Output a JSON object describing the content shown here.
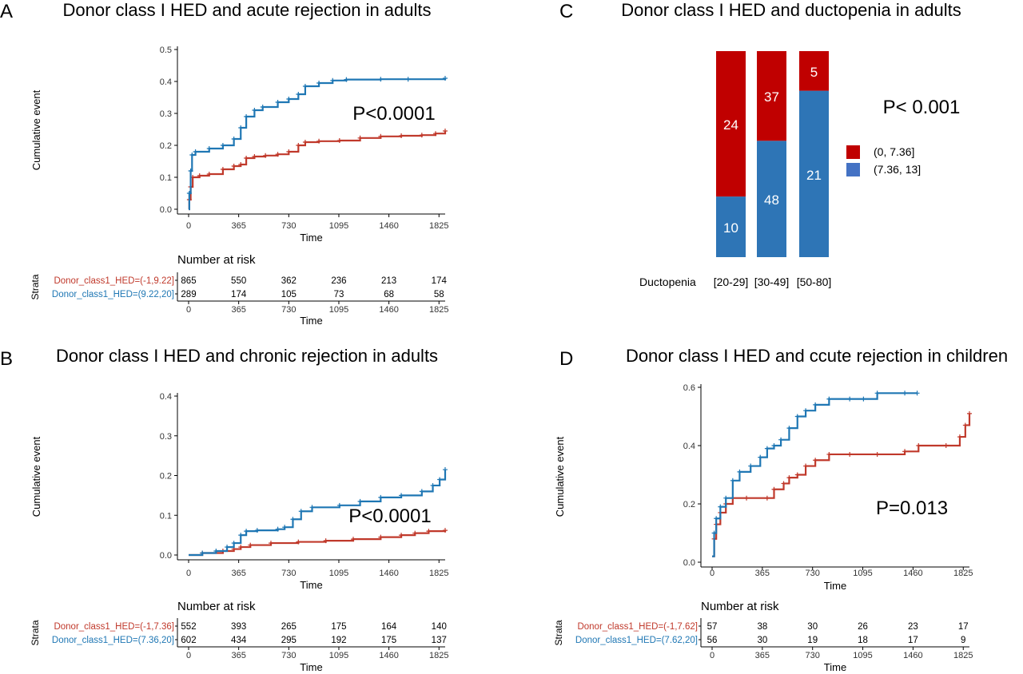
{
  "colors": {
    "red": "#c0392b",
    "blue": "#1f77b4",
    "bar_red": "#c00000",
    "bar_blue": "#2e75b6",
    "legend_blue": "#4472c4"
  },
  "chart_data": [
    {
      "id": "A",
      "type": "line",
      "panel_letter": "A",
      "title": "Donor class I HED and acute rejection in adults",
      "xlabel": "Time",
      "ylabel": "Cumulative event",
      "xlim": [
        0,
        1870
      ],
      "ylim": [
        0,
        0.5
      ],
      "xticks": [
        "0",
        "365",
        "730",
        "1095",
        "1460",
        "1825"
      ],
      "yticks": [
        "0.0",
        "0.1",
        "0.2",
        "0.3",
        "0.4",
        "0.5"
      ],
      "annotation": "P<0.0001",
      "series": [
        {
          "name": "Donor_class1_HED=(-1,9.22]",
          "color": "red",
          "points": [
            [
              0,
              0
            ],
            [
              5,
              0.03
            ],
            [
              15,
              0.07
            ],
            [
              30,
              0.1
            ],
            [
              80,
              0.105
            ],
            [
              150,
              0.11
            ],
            [
              250,
              0.125
            ],
            [
              330,
              0.135
            ],
            [
              380,
              0.14
            ],
            [
              420,
              0.16
            ],
            [
              480,
              0.165
            ],
            [
              560,
              0.168
            ],
            [
              650,
              0.172
            ],
            [
              730,
              0.18
            ],
            [
              800,
              0.2
            ],
            [
              850,
              0.21
            ],
            [
              950,
              0.213
            ],
            [
              1100,
              0.215
            ],
            [
              1250,
              0.223
            ],
            [
              1400,
              0.228
            ],
            [
              1550,
              0.23
            ],
            [
              1700,
              0.232
            ],
            [
              1800,
              0.237
            ],
            [
              1870,
              0.245
            ]
          ]
        },
        {
          "name": "Donor_class1_HED=(9.22,20]",
          "color": "blue",
          "points": [
            [
              0,
              0
            ],
            [
              5,
              0.05
            ],
            [
              15,
              0.12
            ],
            [
              25,
              0.17
            ],
            [
              50,
              0.18
            ],
            [
              150,
              0.19
            ],
            [
              250,
              0.2
            ],
            [
              330,
              0.22
            ],
            [
              380,
              0.255
            ],
            [
              420,
              0.29
            ],
            [
              480,
              0.31
            ],
            [
              540,
              0.32
            ],
            [
              650,
              0.335
            ],
            [
              730,
              0.345
            ],
            [
              800,
              0.36
            ],
            [
              850,
              0.385
            ],
            [
              950,
              0.395
            ],
            [
              1050,
              0.403
            ],
            [
              1150,
              0.406
            ],
            [
              1400,
              0.407
            ],
            [
              1600,
              0.407
            ],
            [
              1870,
              0.41
            ]
          ]
        }
      ],
      "risk_table": {
        "heading": "Number at risk",
        "strata_label": "Strata",
        "xlabel": "Time",
        "rows": [
          {
            "label": "Donor_class1_HED=(-1,9.22]",
            "color": "red",
            "values": [
              "865",
              "550",
              "362",
              "236",
              "213",
              "174"
            ]
          },
          {
            "label": "Donor_class1_HED=(9.22,20]",
            "color": "blue",
            "values": [
              "289",
              "174",
              "105",
              "73",
              "68",
              "58"
            ]
          }
        ]
      }
    },
    {
      "id": "B",
      "type": "line",
      "panel_letter": "B",
      "title": "Donor class I HED and chronic rejection in adults",
      "xlabel": "Time",
      "ylabel": "Cumulative event",
      "xlim": [
        0,
        1870
      ],
      "ylim": [
        0,
        0.4
      ],
      "xticks": [
        "0",
        "365",
        "730",
        "1095",
        "1460",
        "1825"
      ],
      "yticks": [
        "0.0",
        "0.1",
        "0.2",
        "0.3",
        "0.4"
      ],
      "annotation": "P<0.0001",
      "series": [
        {
          "name": "Donor_class1_HED=(-1,7.36]",
          "color": "red",
          "points": [
            [
              0,
              0
            ],
            [
              100,
              0.005
            ],
            [
              250,
              0.01
            ],
            [
              330,
              0.015
            ],
            [
              380,
              0.02
            ],
            [
              450,
              0.025
            ],
            [
              600,
              0.03
            ],
            [
              800,
              0.033
            ],
            [
              1000,
              0.036
            ],
            [
              1200,
              0.04
            ],
            [
              1400,
              0.045
            ],
            [
              1550,
              0.05
            ],
            [
              1650,
              0.055
            ],
            [
              1750,
              0.06
            ],
            [
              1870,
              0.062
            ]
          ]
        },
        {
          "name": "Donor_class1_HED=(7.36,20]",
          "color": "blue",
          "points": [
            [
              0,
              0
            ],
            [
              100,
              0.005
            ],
            [
              200,
              0.01
            ],
            [
              280,
              0.02
            ],
            [
              330,
              0.03
            ],
            [
              380,
              0.05
            ],
            [
              420,
              0.06
            ],
            [
              500,
              0.062
            ],
            [
              650,
              0.065
            ],
            [
              700,
              0.07
            ],
            [
              760,
              0.09
            ],
            [
              820,
              0.11
            ],
            [
              900,
              0.12
            ],
            [
              1100,
              0.125
            ],
            [
              1250,
              0.135
            ],
            [
              1400,
              0.145
            ],
            [
              1550,
              0.15
            ],
            [
              1700,
              0.16
            ],
            [
              1780,
              0.175
            ],
            [
              1830,
              0.19
            ],
            [
              1870,
              0.215
            ]
          ]
        }
      ],
      "risk_table": {
        "heading": "Number at risk",
        "strata_label": "Strata",
        "xlabel": "Time",
        "rows": [
          {
            "label": "Donor_class1_HED=(-1,7.36]",
            "color": "red",
            "values": [
              "552",
              "393",
              "265",
              "175",
              "164",
              "140"
            ]
          },
          {
            "label": "Donor_class1_HED=(7.36,20]",
            "color": "blue",
            "values": [
              "602",
              "434",
              "295",
              "192",
              "175",
              "137"
            ]
          }
        ]
      }
    },
    {
      "id": "C",
      "type": "bar",
      "stacked": true,
      "panel_letter": "C",
      "title": "Donor class I HED and ductopenia in adults",
      "xlabel": "Ductopenia",
      "categories": [
        "[20-29]",
        "[30-49]",
        "[50-80]"
      ],
      "annotation": "P< 0.001",
      "series": [
        {
          "name": "(7.36, 13]",
          "color": "bar_blue",
          "values": [
            10,
            48,
            21
          ]
        },
        {
          "name": "(0, 7.36]",
          "color": "bar_red",
          "values": [
            24,
            37,
            5
          ]
        }
      ],
      "legend_placement": "right"
    },
    {
      "id": "D",
      "type": "line",
      "panel_letter": "D",
      "title": "Donor class I HED and ccute rejection in children",
      "xlabel": "Time",
      "ylabel": "Cumulative event",
      "xlim": [
        0,
        1870
      ],
      "ylim": [
        0,
        0.6
      ],
      "xticks": [
        "0",
        "365",
        "730",
        "1095",
        "1460",
        "1825"
      ],
      "yticks": [
        "0.0",
        "0.2",
        "0.4",
        "0.6"
      ],
      "annotation": "P=0.013",
      "series": [
        {
          "name": "Donor_class1_HED=(-1,7.62]",
          "color": "red",
          "points": [
            [
              0,
              0.02
            ],
            [
              15,
              0.08
            ],
            [
              30,
              0.13
            ],
            [
              60,
              0.17
            ],
            [
              100,
              0.2
            ],
            [
              150,
              0.22
            ],
            [
              250,
              0.22
            ],
            [
              400,
              0.22
            ],
            [
              450,
              0.25
            ],
            [
              520,
              0.27
            ],
            [
              560,
              0.29
            ],
            [
              620,
              0.3
            ],
            [
              680,
              0.33
            ],
            [
              750,
              0.35
            ],
            [
              850,
              0.37
            ],
            [
              1000,
              0.37
            ],
            [
              1200,
              0.37
            ],
            [
              1400,
              0.38
            ],
            [
              1500,
              0.4
            ],
            [
              1700,
              0.4
            ],
            [
              1800,
              0.43
            ],
            [
              1840,
              0.47
            ],
            [
              1870,
              0.51
            ]
          ]
        },
        {
          "name": "Donor_class1_HED=(7.62,20]",
          "color": "blue",
          "points": [
            [
              0,
              0.02
            ],
            [
              15,
              0.1
            ],
            [
              30,
              0.15
            ],
            [
              60,
              0.19
            ],
            [
              100,
              0.22
            ],
            [
              150,
              0.28
            ],
            [
              200,
              0.31
            ],
            [
              280,
              0.33
            ],
            [
              350,
              0.36
            ],
            [
              400,
              0.39
            ],
            [
              450,
              0.4
            ],
            [
              500,
              0.42
            ],
            [
              560,
              0.46
            ],
            [
              620,
              0.5
            ],
            [
              680,
              0.52
            ],
            [
              750,
              0.54
            ],
            [
              850,
              0.56
            ],
            [
              1000,
              0.56
            ],
            [
              1100,
              0.56
            ],
            [
              1200,
              0.58
            ],
            [
              1400,
              0.58
            ],
            [
              1490,
              0.58
            ]
          ]
        }
      ],
      "risk_table": {
        "heading": "Number at risk",
        "strata_label": "Strata",
        "xlabel": "Time",
        "rows": [
          {
            "label": "Donor_class1_HED=(-1,7.62]",
            "color": "red",
            "values": [
              "57",
              "38",
              "30",
              "26",
              "23",
              "17"
            ]
          },
          {
            "label": "Donor_class1_HED=(7.62,20]",
            "color": "blue",
            "values": [
              "56",
              "30",
              "19",
              "18",
              "17",
              "9"
            ]
          }
        ]
      }
    }
  ]
}
